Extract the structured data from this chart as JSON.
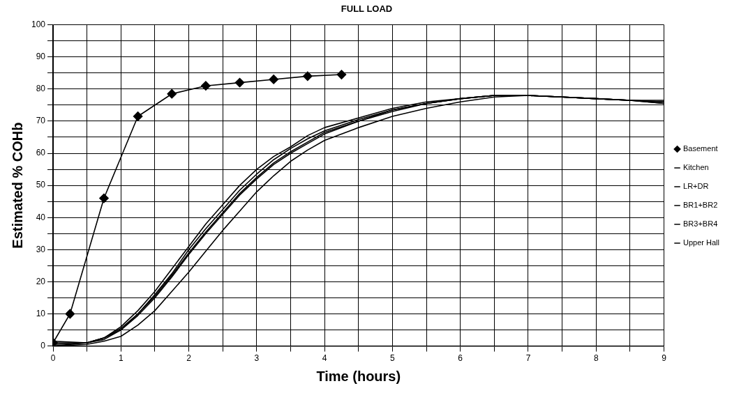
{
  "chart_data": {
    "type": "line",
    "title": "FULL LOAD",
    "xlabel": "Time (hours)",
    "ylabel": "Estimated % COHb",
    "xlim": [
      0,
      9
    ],
    "ylim": [
      0,
      100
    ],
    "xticks": [
      0,
      {
        "value": 0.5,
        "label": null
      },
      1,
      {
        "value": 1.5,
        "label": null
      },
      2,
      {
        "value": 2.5,
        "label": null
      },
      3,
      {
        "value": 3.5,
        "label": null
      },
      4,
      {
        "value": 4.5,
        "label": null
      },
      5,
      {
        "value": 5.5,
        "label": null
      },
      6,
      {
        "value": 6.5,
        "label": null
      },
      7,
      {
        "value": 7.5,
        "label": null
      },
      8,
      {
        "value": 8.5,
        "label": null
      },
      9
    ],
    "yticks": [
      0,
      {
        "value": 5,
        "label": null
      },
      10,
      {
        "value": 15,
        "label": null
      },
      20,
      {
        "value": 25,
        "label": null
      },
      30,
      {
        "value": 35,
        "label": null
      },
      40,
      {
        "value": 45,
        "label": null
      },
      50,
      {
        "value": 55,
        "label": null
      },
      60,
      {
        "value": 65,
        "label": null
      },
      70,
      {
        "value": 75,
        "label": null
      },
      80,
      {
        "value": 85,
        "label": null
      },
      90,
      {
        "value": 95,
        "label": null
      },
      100
    ],
    "grid": true,
    "legend": "right",
    "line_style": "solid",
    "series": [
      {
        "name": "Basement",
        "color": "#000000",
        "marker": "diamond",
        "x": [
          0,
          0.25,
          0.75,
          1.25,
          1.75,
          2.25,
          2.75,
          3.25,
          3.75,
          4.25
        ],
        "values": [
          1,
          10,
          46,
          71.5,
          78.5,
          81,
          82,
          83,
          84,
          84.5
        ]
      },
      {
        "name": "Kitchen",
        "color": "#000000",
        "marker": "none",
        "x": [
          0,
          0.5,
          0.75,
          1,
          1.25,
          1.5,
          1.75,
          2,
          2.25,
          2.5,
          2.75,
          3,
          3.25,
          3.5,
          3.75,
          4,
          4.5,
          5,
          5.5,
          6,
          6.5,
          7,
          7.5,
          8,
          8.5,
          9
        ],
        "values": [
          0,
          1,
          2.5,
          6,
          11,
          17,
          24,
          31,
          38,
          44,
          50,
          55,
          59,
          62,
          65.5,
          68,
          71,
          74,
          76,
          77,
          78,
          78,
          77.5,
          77,
          76.5,
          76
        ]
      },
      {
        "name": "LR+DR",
        "color": "#000000",
        "marker": "none",
        "x": [
          0,
          0.5,
          0.75,
          1,
          1.25,
          1.5,
          1.75,
          2,
          2.25,
          2.5,
          2.75,
          3,
          3.25,
          3.5,
          3.75,
          4,
          4.5,
          5,
          5.5,
          6,
          6.5,
          7,
          7.5,
          8,
          8.5,
          9
        ],
        "values": [
          0.5,
          1,
          2.5,
          5.5,
          10,
          16,
          22.5,
          30,
          36.5,
          42.5,
          48.5,
          53.5,
          58,
          61.5,
          64.5,
          67,
          70.5,
          73.5,
          75.5,
          77,
          78,
          78,
          77.5,
          77,
          76.5,
          76.5
        ]
      },
      {
        "name": "BR1+BR2",
        "color": "#000000",
        "marker": "none",
        "x": [
          0,
          0.5,
          0.75,
          1,
          1.25,
          1.5,
          1.75,
          2,
          2.25,
          2.5,
          2.75,
          3,
          3.25,
          3.5,
          3.75,
          4,
          4.5,
          5,
          5.5,
          6,
          6.5,
          7,
          7.5,
          8,
          8.5,
          9
        ],
        "values": [
          1,
          1,
          2.5,
          5,
          10,
          15.5,
          22,
          29,
          35.5,
          41.5,
          47.5,
          52.5,
          57,
          60.5,
          63.5,
          66.5,
          70,
          73.5,
          75.5,
          77,
          78,
          78,
          77.5,
          77,
          76.5,
          75.5
        ]
      },
      {
        "name": "BR3+BR4",
        "color": "#000000",
        "marker": "none",
        "x": [
          0,
          0.5,
          0.75,
          1,
          1.25,
          1.5,
          1.75,
          2,
          2.25,
          2.5,
          2.75,
          3,
          3.25,
          3.5,
          3.75,
          4,
          4.5,
          5,
          5.5,
          6,
          6.5,
          7,
          7.5,
          8,
          8.5,
          9
        ],
        "values": [
          1.5,
          1,
          2,
          5,
          9.5,
          15,
          21.5,
          28.5,
          35,
          41,
          47,
          52,
          56.5,
          60,
          63,
          66,
          70,
          73,
          75.5,
          77,
          78,
          78,
          77.5,
          77,
          76.5,
          76
        ]
      },
      {
        "name": "Upper Hall",
        "color": "#000000",
        "marker": "none",
        "x": [
          0,
          0.5,
          0.75,
          1,
          1.25,
          1.5,
          1.75,
          2,
          2.25,
          2.5,
          2.75,
          3,
          3.25,
          3.5,
          3.75,
          4,
          4.5,
          5,
          5.5,
          6,
          6.5,
          7,
          7.5,
          8,
          8.5,
          9
        ],
        "values": [
          0,
          0.5,
          1.5,
          3,
          6.5,
          11,
          17,
          23,
          29.5,
          36,
          42,
          48,
          53,
          57.5,
          61,
          64,
          68,
          71.5,
          74,
          76,
          77.5,
          78,
          77.5,
          77,
          76.5,
          75.5
        ]
      }
    ]
  }
}
